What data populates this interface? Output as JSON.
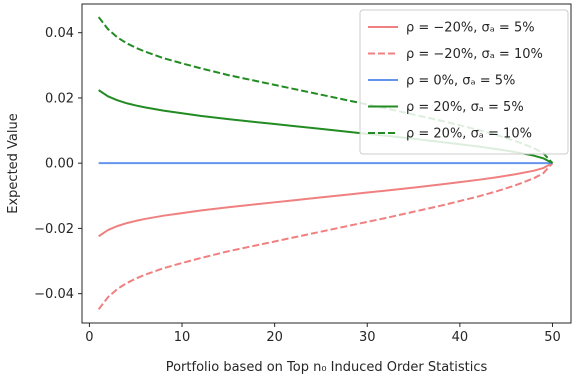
{
  "chart_data": {
    "type": "line",
    "title": "",
    "xlabel": "Portfolio based on Top n₀ Induced Order Statistics",
    "ylabel": "Expected Value",
    "xlim": [
      -0.8,
      52.0
    ],
    "ylim": [
      -0.049,
      0.0488
    ],
    "xticks": [
      0,
      10,
      20,
      30,
      40,
      50
    ],
    "xtick_labels": [
      "0",
      "10",
      "20",
      "30",
      "40",
      "50"
    ],
    "yticks": [
      -0.04,
      -0.02,
      0.0,
      0.02,
      0.04
    ],
    "ytick_labels": [
      "−0.04",
      "−0.02",
      "0.00",
      "0.02",
      "0.04"
    ],
    "grid": false,
    "legend_position": "top-right",
    "x": [
      1,
      2,
      3,
      4,
      5,
      6,
      8,
      10,
      12,
      15,
      18,
      20,
      22,
      25,
      28,
      30,
      32,
      35,
      38,
      40,
      42,
      44,
      46,
      48,
      49,
      50
    ],
    "series": [
      {
        "name": "ρ = −20%, σₐ = 5%",
        "color": "#f08080",
        "dash": "solid",
        "values": [
          -0.0224,
          -0.0205,
          -0.0193,
          -0.0184,
          -0.0177,
          -0.0171,
          -0.0161,
          -0.0153,
          -0.0145,
          -0.0135,
          -0.0126,
          -0.012,
          -0.0114,
          -0.0105,
          -0.0096,
          -0.009,
          -0.0084,
          -0.0075,
          -0.0065,
          -0.0058,
          -0.0051,
          -0.0043,
          -0.0034,
          -0.0023,
          -0.0015,
          0.0
        ]
      },
      {
        "name": "ρ = −20%, σₐ = 10%",
        "color": "#f08080",
        "dash": "dashed",
        "values": [
          -0.0448,
          -0.0411,
          -0.0386,
          -0.0368,
          -0.0354,
          -0.0342,
          -0.0322,
          -0.0306,
          -0.0291,
          -0.027,
          -0.0252,
          -0.024,
          -0.0228,
          -0.021,
          -0.0192,
          -0.018,
          -0.0168,
          -0.0149,
          -0.013,
          -0.0116,
          -0.0102,
          -0.0086,
          -0.0068,
          -0.0046,
          -0.0031,
          0.0
        ]
      },
      {
        "name": "ρ = 0%, σₐ = 5%",
        "color": "#6495ed",
        "dash": "solid",
        "values": [
          0.0,
          0.0,
          0.0,
          0.0,
          0.0,
          0.0,
          0.0,
          0.0,
          0.0,
          0.0,
          0.0,
          0.0,
          0.0,
          0.0,
          0.0,
          0.0,
          0.0,
          0.0,
          0.0,
          0.0,
          0.0,
          0.0,
          0.0,
          0.0,
          0.0,
          0.0
        ]
      },
      {
        "name": "ρ = 20%, σₐ = 5%",
        "color": "#228b22",
        "dash": "solid",
        "values": [
          0.0224,
          0.0205,
          0.0193,
          0.0184,
          0.0177,
          0.0171,
          0.0161,
          0.0153,
          0.0145,
          0.0135,
          0.0126,
          0.012,
          0.0114,
          0.0105,
          0.0096,
          0.009,
          0.0084,
          0.0075,
          0.0065,
          0.0058,
          0.0051,
          0.0043,
          0.0034,
          0.0023,
          0.0015,
          0.0
        ]
      },
      {
        "name": "ρ = 20%, σₐ = 10%",
        "color": "#228b22",
        "dash": "dashed",
        "values": [
          0.0448,
          0.0411,
          0.0386,
          0.0368,
          0.0354,
          0.0342,
          0.0322,
          0.0306,
          0.0291,
          0.027,
          0.0252,
          0.024,
          0.0228,
          0.021,
          0.0192,
          0.018,
          0.0168,
          0.0149,
          0.013,
          0.0116,
          0.0102,
          0.0086,
          0.0068,
          0.0046,
          0.0031,
          0.0
        ]
      }
    ]
  }
}
